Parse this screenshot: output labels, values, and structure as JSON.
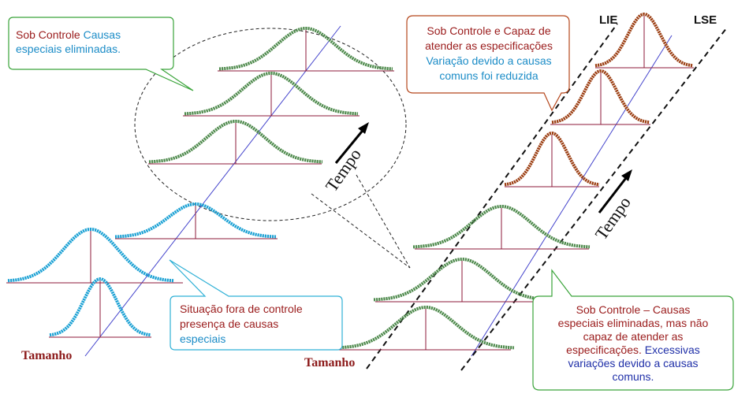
{
  "labels": {
    "lie": "LIE",
    "lse": "LSE",
    "tempo_left": "Tempo",
    "tempo_right": "Tempo",
    "tamanho_left": "Tamanho",
    "tamanho_right": "Tamanho"
  },
  "callouts": {
    "top_left": {
      "part1": "Sob Controle",
      "part2": " Causas",
      "part3": "especiais eliminadas."
    },
    "bottom_left": {
      "line1": "Situação fora de controle",
      "line2": " presença de causas",
      "line3": "especiais"
    },
    "top_right": {
      "line1": "Sob Controle e Capaz de",
      "line2": "atender as especificações",
      "line3": "Variação devido a causas",
      "line4": "comuns foi reduzida"
    },
    "bottom_right": {
      "line1": "Sob Controle – Causas",
      "line2": "especiais eliminadas, mas não",
      "line3": "capaz de atender as",
      "line4a": "especificações. ",
      "line4b": "Excessivas",
      "line5": "variações devido a causas",
      "line6": "comuns."
    }
  },
  "colors": {
    "blue_curve": "#1ba1d4",
    "green_curve": "#4e8a4c",
    "brown_curve": "#9c3f13",
    "axis_line": "#8c1a3a",
    "time_axis": "#4444cc",
    "text_red": "#9a1b1b",
    "text_teal": "#1b8cc7",
    "text_blue": "#1f2fa8",
    "box_green": "#3aa43a",
    "box_cyan": "#2fb0d6",
    "box_red": "#b5461b"
  }
}
